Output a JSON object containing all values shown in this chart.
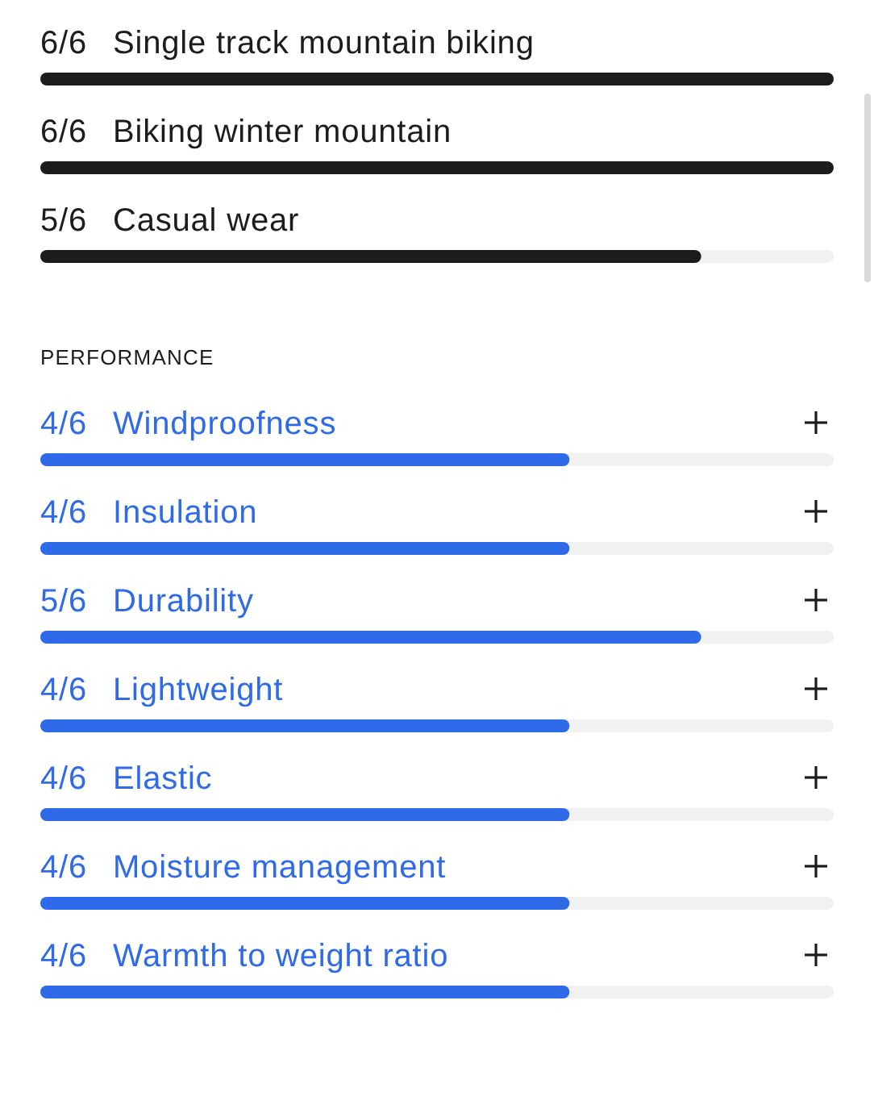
{
  "chart_data": [
    {
      "type": "bar",
      "orientation": "horizontal",
      "categories": [
        "Single track mountain biking",
        "Biking winter mountain",
        "Casual wear"
      ],
      "values": [
        1,
        1,
        0.833
      ],
      "value_labels": [
        "6/6",
        "6/6",
        "5/6"
      ],
      "color": "#1c1c1c",
      "xlim": [
        0,
        1
      ],
      "tick_labels": "y"
    },
    {
      "type": "bar",
      "orientation": "horizontal",
      "title": "PERFORMANCE",
      "categories": [
        "Windproofness",
        "Insulation",
        "Durability",
        "Lightweight",
        "Elastic",
        "Moisture management",
        "Warmth to weight ratio"
      ],
      "values": [
        0.667,
        0.667,
        0.833,
        0.667,
        0.667,
        0.667,
        0.667
      ],
      "value_labels": [
        "4/6",
        "4/6",
        "5/6",
        "4/6",
        "4/6",
        "4/6",
        "4/6"
      ],
      "color": "#2f6be8",
      "xlim": [
        0,
        1
      ],
      "tick_labels": "y"
    }
  ]
}
